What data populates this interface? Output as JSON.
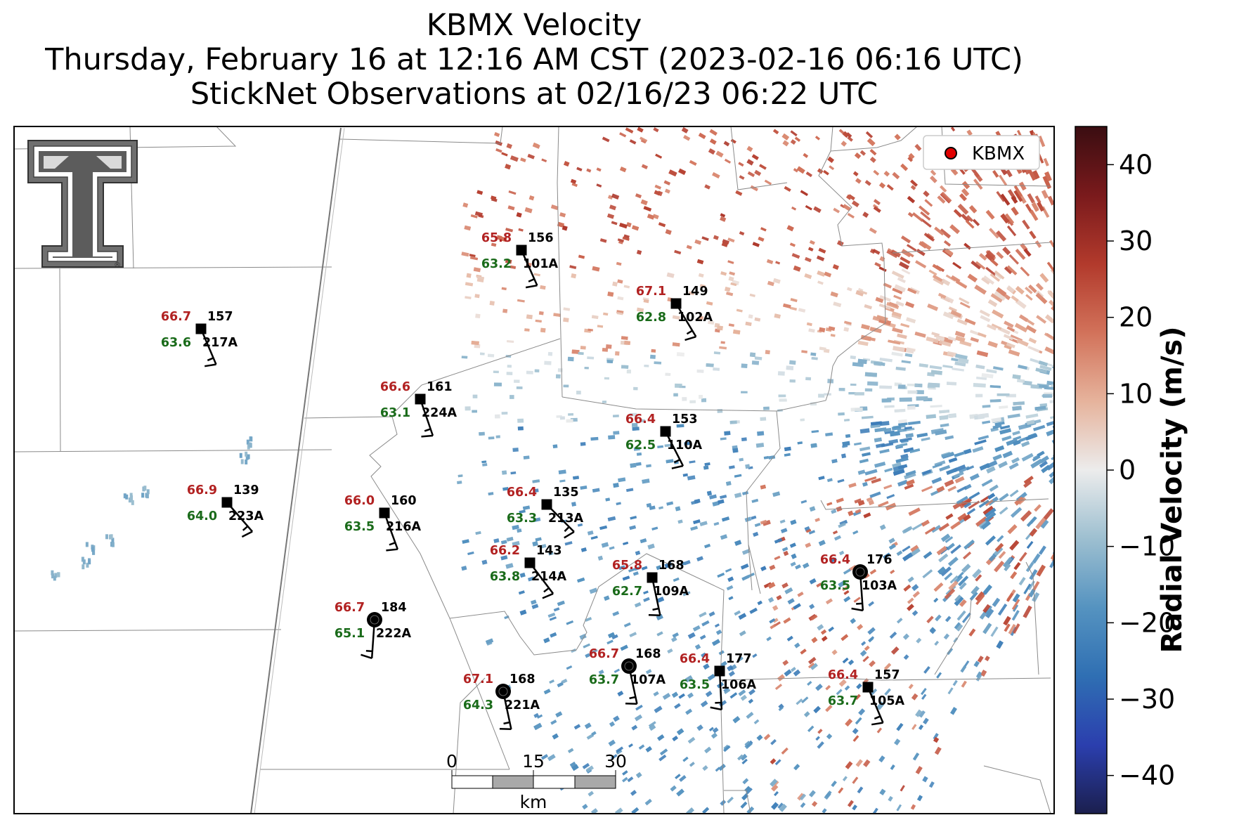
{
  "title": {
    "line1": "KBMX Velocity",
    "line2": "Thursday, February 16 at 12:16 AM CST (2023-02-16 06:16 UTC)",
    "line3": "StickNet Observations at 02/16/23 06:22 UTC"
  },
  "legend": {
    "label": "KBMX",
    "marker_color": "#e00000"
  },
  "colorbar": {
    "label": "Radial Velocity (m/s)",
    "min": -45,
    "max": 45,
    "ticks": [
      40,
      30,
      20,
      10,
      0,
      -10,
      -20,
      -30,
      -40
    ],
    "tick_labels": [
      "40",
      "30",
      "20",
      "10",
      "0",
      "−10",
      "−20",
      "−30",
      "−40"
    ],
    "colors": [
      "#1b1f4e",
      "#2b3fae",
      "#2f6fb3",
      "#5593c0",
      "#9dbfd0",
      "#ececec",
      "#e6b39c",
      "#d2725a",
      "#b23a2c",
      "#7a1a1c",
      "#3a0d11"
    ]
  },
  "scalebar": {
    "labels": [
      "0",
      "15",
      "30"
    ],
    "unit": "km"
  },
  "logo": {
    "name": "texas-tech-double-t"
  },
  "stations": [
    {
      "id": "101A",
      "temp": "65.8",
      "dew": "63.2",
      "dir": "156",
      "marker": "square"
    },
    {
      "id": "102A",
      "temp": "67.1",
      "dew": "62.8",
      "dir": "149",
      "marker": "square"
    },
    {
      "id": "217A",
      "temp": "66.7",
      "dew": "63.6",
      "dir": "157",
      "marker": "square"
    },
    {
      "id": "224A",
      "temp": "66.6",
      "dew": "63.1",
      "dir": "161",
      "marker": "square"
    },
    {
      "id": "110A",
      "temp": "66.4",
      "dew": "62.5",
      "dir": "153",
      "marker": "square"
    },
    {
      "id": "223A",
      "temp": "66.9",
      "dew": "64.0",
      "dir": "139",
      "marker": "square"
    },
    {
      "id": "216A",
      "temp": "66.0",
      "dew": "63.5",
      "dir": "160",
      "marker": "square"
    },
    {
      "id": "213A",
      "temp": "66.4",
      "dew": "63.3",
      "dir": "135",
      "marker": "square"
    },
    {
      "id": "214A",
      "temp": "66.2",
      "dew": "63.8",
      "dir": "143",
      "marker": "square"
    },
    {
      "id": "109A",
      "temp": "65.8",
      "dew": "62.7",
      "dir": "168",
      "marker": "square"
    },
    {
      "id": "103A",
      "temp": "66.4",
      "dew": "63.5",
      "dir": "176",
      "marker": "circle"
    },
    {
      "id": "222A",
      "temp": "66.7",
      "dew": "65.1",
      "dir": "184",
      "marker": "circle"
    },
    {
      "id": "107A",
      "temp": "66.7",
      "dew": "63.7",
      "dir": "168",
      "marker": "circle"
    },
    {
      "id": "106A",
      "temp": "66.4",
      "dew": "63.5",
      "dir": "177",
      "marker": "square"
    },
    {
      "id": "105A",
      "temp": "66.4",
      "dew": "63.7",
      "dir": "157",
      "marker": "square"
    },
    {
      "id": "221A",
      "temp": "67.1",
      "dew": "64.3",
      "dir": "168",
      "marker": "circle"
    }
  ]
}
